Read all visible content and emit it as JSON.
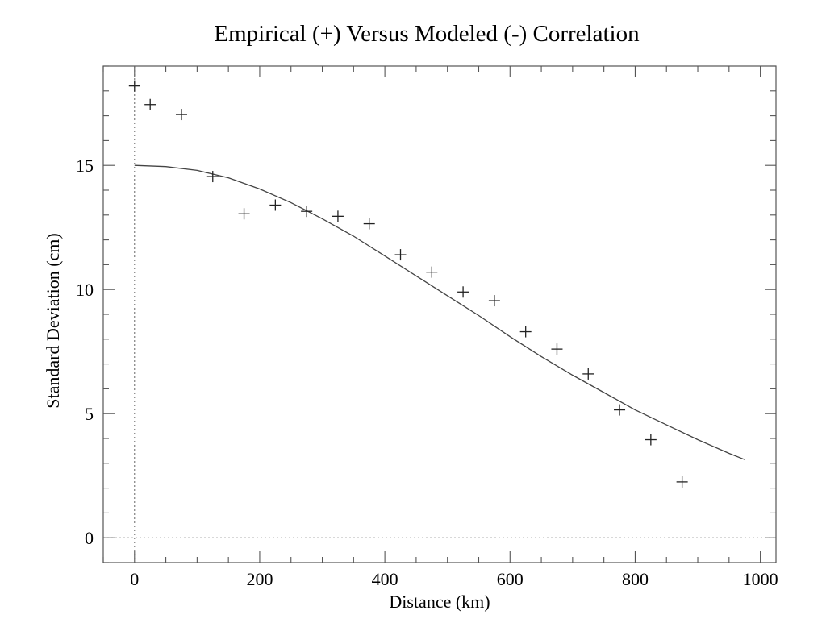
{
  "chart_data": {
    "type": "scatter",
    "title": "Empirical (+) Versus Modeled (-) Correlation",
    "xlabel": "Distance (km)",
    "ylabel": "Standard Deviation (cm)",
    "xlim": [
      -50,
      1025
    ],
    "ylim": [
      -1,
      19
    ],
    "xticks": [
      0,
      200,
      400,
      600,
      800,
      1000
    ],
    "yticks": [
      0,
      5,
      10,
      15
    ],
    "x_minor_step": 50,
    "y_minor_step": 1,
    "grid": false,
    "reference_lines": [
      {
        "axis": "x",
        "value": 0,
        "style": "dotted"
      },
      {
        "axis": "y",
        "value": 0,
        "style": "dotted"
      }
    ],
    "series": [
      {
        "type": "scatter",
        "marker": "+",
        "x": [
          0,
          25,
          75,
          125,
          175,
          225,
          275,
          325,
          375,
          425,
          475,
          525,
          575,
          625,
          675,
          725,
          775,
          825,
          875
        ],
        "y": [
          18.2,
          17.45,
          17.05,
          14.55,
          13.05,
          13.4,
          13.15,
          12.95,
          12.65,
          11.4,
          10.7,
          9.9,
          9.55,
          8.3,
          7.6,
          6.6,
          5.15,
          3.95,
          2.25
        ]
      },
      {
        "type": "line",
        "x": [
          0,
          50,
          100,
          150,
          200,
          250,
          300,
          350,
          400,
          450,
          500,
          550,
          600,
          650,
          700,
          750,
          800,
          850,
          900,
          950,
          975
        ],
        "y": [
          15.0,
          14.95,
          14.8,
          14.5,
          14.05,
          13.5,
          12.85,
          12.15,
          11.35,
          10.55,
          9.75,
          8.95,
          8.1,
          7.3,
          6.55,
          5.85,
          5.15,
          4.55,
          3.95,
          3.4,
          3.15
        ]
      }
    ]
  }
}
